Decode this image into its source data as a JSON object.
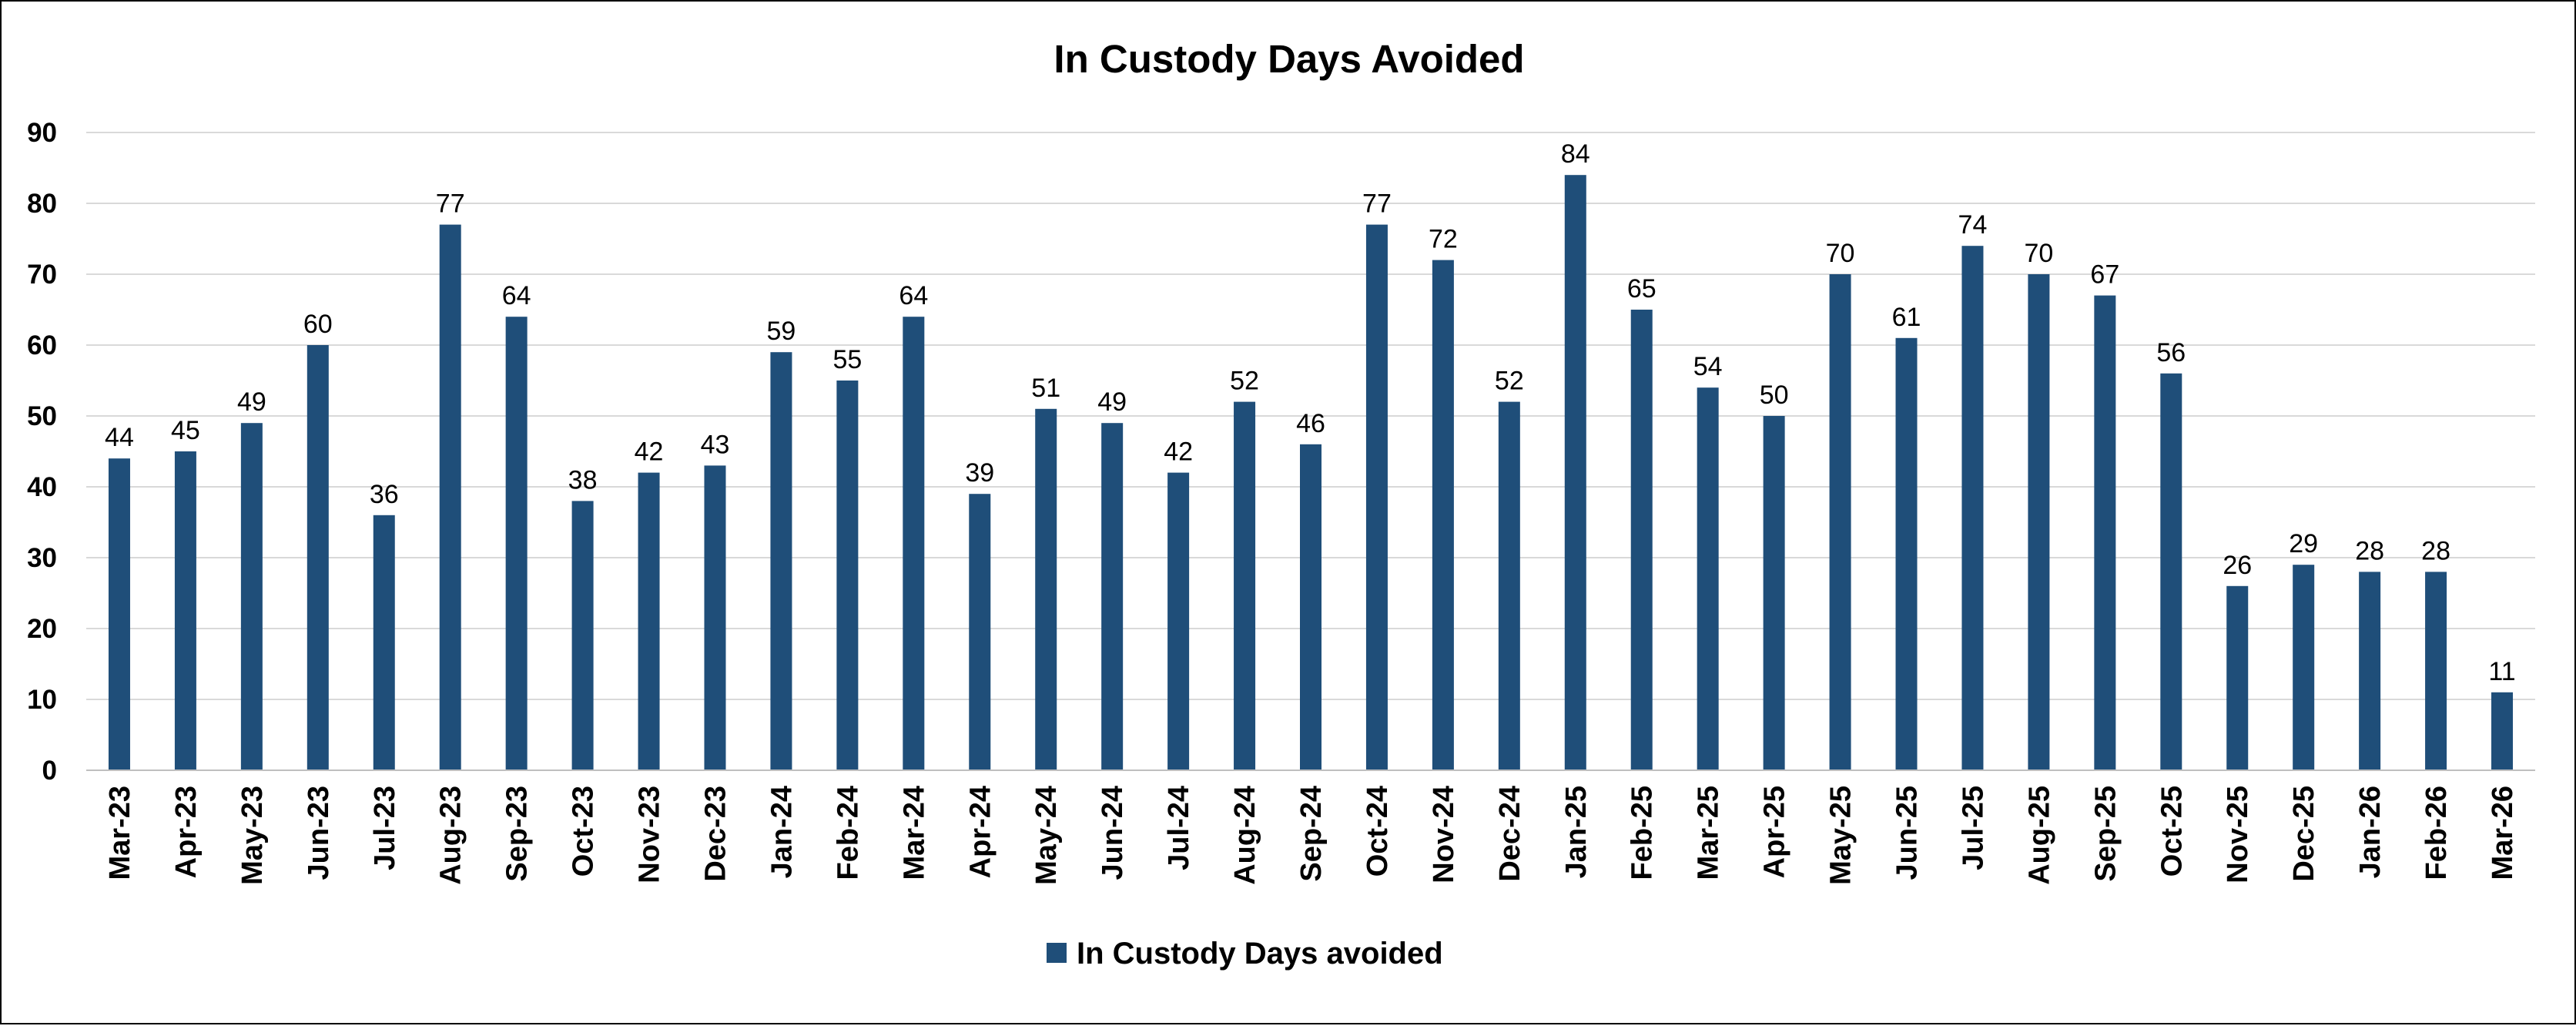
{
  "chart_data": {
    "type": "bar",
    "title": "In Custody Days Avoided",
    "xlabel": "",
    "ylabel": "",
    "ylim": [
      0,
      90
    ],
    "yticks": [
      0,
      10,
      20,
      30,
      40,
      50,
      60,
      70,
      80,
      90
    ],
    "grid": true,
    "legend_position": "bottom",
    "bar_color": "#1f4e79",
    "categories": [
      "Mar-23",
      "Apr-23",
      "May-23",
      "Jun-23",
      "Jul-23",
      "Aug-23",
      "Sep-23",
      "Oct-23",
      "Nov-23",
      "Dec-23",
      "Jan-24",
      "Feb-24",
      "Mar-24",
      "Apr-24",
      "May-24",
      "Jun-24",
      "Jul-24",
      "Aug-24",
      "Sep-24",
      "Oct-24",
      "Nov-24",
      "Dec-24",
      "Jan-25",
      "Feb-25",
      "Mar-25",
      "Apr-25",
      "May-25",
      "Jun-25",
      "Jul-25",
      "Aug-25",
      "Sep-25",
      "Oct-25",
      "Nov-25",
      "Dec-25",
      "Jan-26",
      "Feb-26",
      "Mar-26"
    ],
    "series": [
      {
        "name": "In Custody Days avoided",
        "values": [
          44,
          45,
          49,
          60,
          36,
          77,
          64,
          38,
          42,
          43,
          59,
          55,
          64,
          39,
          51,
          49,
          42,
          52,
          46,
          77,
          72,
          52,
          84,
          65,
          54,
          50,
          70,
          61,
          74,
          70,
          67,
          56,
          26,
          29,
          28,
          28,
          11
        ]
      }
    ]
  }
}
